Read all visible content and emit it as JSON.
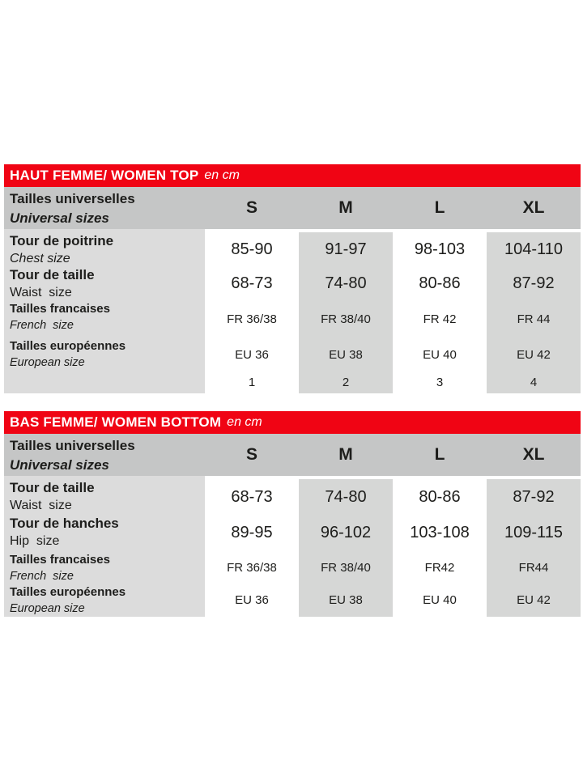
{
  "colors": {
    "accent_red": "#f00414",
    "header_gray": "#c5c6c6",
    "label_gray": "#dcdcdc",
    "cell_gray": "#d6d7d6",
    "text": "#1d1d1b"
  },
  "tables": [
    {
      "title": "HAUT FEMME/ WOMEN TOP",
      "title_suffix": "en cm",
      "header": {
        "label_fr": "Tailles universelles",
        "label_en": "Universal sizes",
        "columns": [
          "S",
          "M",
          "L",
          "XL"
        ]
      },
      "rows": [
        {
          "label_fr": "Tour de poitrine",
          "label_en": "Chest size",
          "values": [
            "85-90",
            "91-97",
            "98-103",
            "104-110"
          ]
        },
        {
          "label_fr": "Tour de taille",
          "label_en": "Waist  size",
          "values": [
            "68-73",
            "74-80",
            "80-86",
            "87-92"
          ]
        },
        {
          "label_fr": "Tailles francaises",
          "label_en": "French  size",
          "values": [
            "FR 36/38",
            "FR 38/40",
            "FR 42",
            "FR 44"
          ]
        },
        {
          "label_fr": "Tailles européennes",
          "label_en": "European size",
          "values": [
            "EU 36",
            "EU 38",
            "EU 40",
            "EU 42"
          ]
        },
        {
          "label_fr": "",
          "label_en": "",
          "values": [
            "1",
            "2",
            "3",
            "4"
          ]
        }
      ]
    },
    {
      "title": "BAS FEMME/ WOMEN BOTTOM",
      "title_suffix": "en cm",
      "header": {
        "label_fr": "Tailles universelles",
        "label_en": "Universal sizes",
        "columns": [
          "S",
          "M",
          "L",
          "XL"
        ]
      },
      "rows": [
        {
          "label_fr": "Tour de taille",
          "label_en": "Waist  size",
          "values": [
            "68-73",
            "74-80",
            "80-86",
            "87-92"
          ]
        },
        {
          "label_fr": "Tour de hanches",
          "label_en": "Hip  size",
          "values": [
            "89-95",
            "96-102",
            "103-108",
            "109-115"
          ]
        },
        {
          "label_fr": "Tailles francaises",
          "label_en": "French  size",
          "values": [
            "FR 36/38",
            "FR 38/40",
            "FR42",
            "FR44"
          ]
        },
        {
          "label_fr": "Tailles européennes",
          "label_en": "European size",
          "values": [
            "EU 36",
            "EU 38",
            "EU 40",
            "EU 42"
          ]
        }
      ]
    }
  ]
}
